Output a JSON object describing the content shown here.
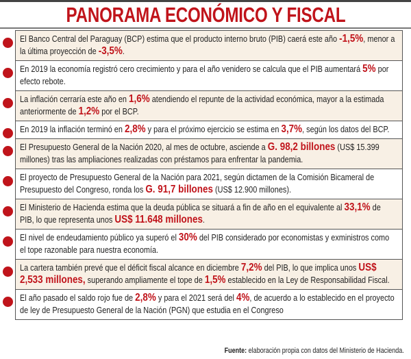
{
  "title": "PANORAMA ECONÓMICO Y FISCAL",
  "accent_color": "#c0141b",
  "rows": [
    {
      "segments": [
        {
          "t": "El Banco Central del Paraguay (BCP) estima que el producto interno bruto (PIB) caerá este año "
        },
        {
          "t": "-1,5%",
          "hl": true
        },
        {
          "t": ", menor a la última proyección de "
        },
        {
          "t": "-3,5%",
          "hl": true
        },
        {
          "t": "."
        }
      ]
    },
    {
      "segments": [
        {
          "t": "En 2019 la economía registró cero crecimiento y para el año venidero se calcula que el PIB aumentará "
        },
        {
          "t": "5%",
          "hl": true
        },
        {
          "t": " por efecto rebote."
        }
      ]
    },
    {
      "segments": [
        {
          "t": "La inflación cerraría este año en "
        },
        {
          "t": "1,6%",
          "hl": true
        },
        {
          "t": " atendiendo el repunte de la actividad económica, mayor a la estimada anteriormente de "
        },
        {
          "t": "1,2%",
          "hl": true
        },
        {
          "t": " por el BCP."
        }
      ]
    },
    {
      "segments": [
        {
          "t": "En 2019 la inflación terminó en "
        },
        {
          "t": "2,8%",
          "hl": true
        },
        {
          "t": " y para el próximo ejercicio se estima en "
        },
        {
          "t": "3,7%",
          "hl": true
        },
        {
          "t": ", según los datos del BCP."
        }
      ]
    },
    {
      "segments": [
        {
          "t": "El Presupuesto General de la Nación 2020, al mes de octubre, asciende a "
        },
        {
          "t": "G. 98,2 billones",
          "hl": true
        },
        {
          "t": " (US$ 15.399 millones) tras las ampliaciones realizadas con préstamos para enfrentar la pandemia."
        }
      ]
    },
    {
      "segments": [
        {
          "t": "El proyecto de Presupuesto General de la Nación para 2021, según dictamen de la Comisión Bicameral de Presupuesto del Congreso, ronda los "
        },
        {
          "t": "G. 91,7 billones",
          "hl": true
        },
        {
          "t": " (US$ 12.900 millones)."
        }
      ]
    },
    {
      "segments": [
        {
          "t": "El Ministerio de Hacienda estima que la deuda pública se situará a fin de año en el equivalente al "
        },
        {
          "t": "33,1%",
          "hl": true
        },
        {
          "t": " de PIB, lo que representa unos "
        },
        {
          "t": "US$ 11.648 millones",
          "hl": true
        },
        {
          "t": "."
        }
      ]
    },
    {
      "segments": [
        {
          "t": "El nivel de endeudamiento público ya superó el "
        },
        {
          "t": "30%",
          "hl": true
        },
        {
          "t": " del PIB considerado por economistas y exministros como el tope razonable para nuestra economía."
        }
      ]
    },
    {
      "segments": [
        {
          "t": "La cartera también prevé que el déficit fiscal alcance en diciembre "
        },
        {
          "t": "7,2%",
          "hl": true
        },
        {
          "t": " del PIB, lo que implica unos "
        },
        {
          "t": "US$ 2,533 millones,",
          "hl": true
        },
        {
          "t": " superando ampliamente el tope de "
        },
        {
          "t": "1,5%",
          "hl": true
        },
        {
          "t": " establecido en la Ley de Responsabilidad Fiscal."
        }
      ]
    },
    {
      "segments": [
        {
          "t": "El año pasado el saldo rojo fue de "
        },
        {
          "t": "2,8%",
          "hl": true
        },
        {
          "t": " y para el 2021 será del "
        },
        {
          "t": "4%",
          "hl": true
        },
        {
          "t": ", de acuerdo a lo establecido en el proyecto de ley de Presupuesto General de la Nación (PGN) que estudia en el Congreso"
        }
      ]
    }
  ],
  "source": {
    "label": "Fuente:",
    "text": " elaboración propia con datos del Ministerio de Hacienda."
  }
}
